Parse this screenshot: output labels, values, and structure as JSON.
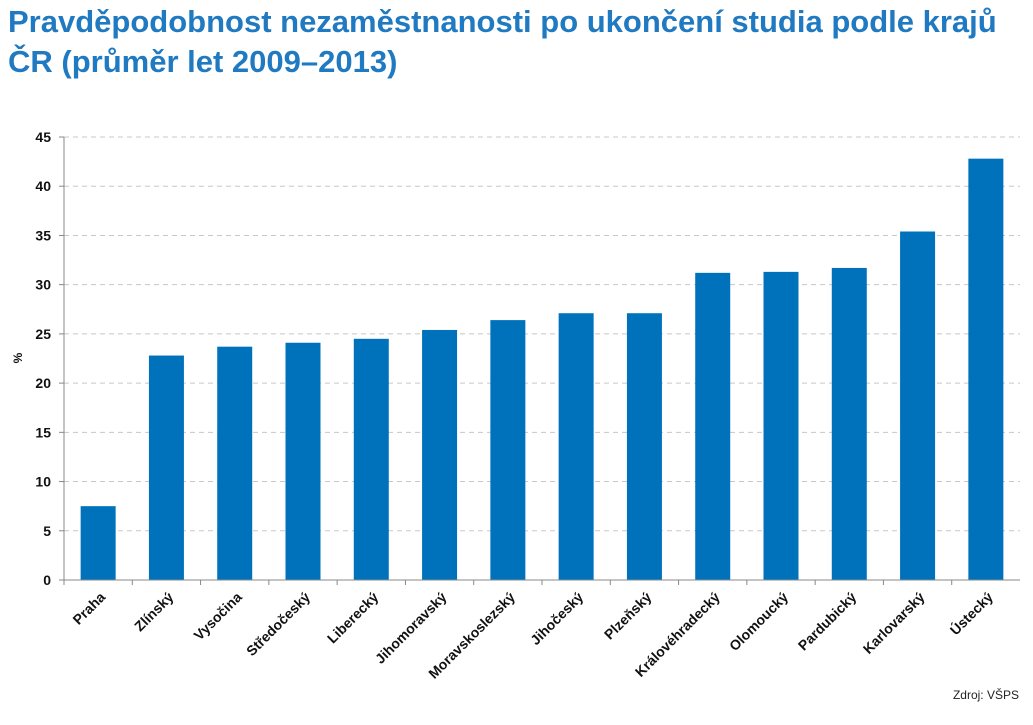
{
  "title": "Pravděpodobnost nezaměstnanosti po ukončení studia podle krajů ČR (průměr let 2009–2013)",
  "source": "Zdroj: VŠPS",
  "chart_data": {
    "type": "bar",
    "categories": [
      "Praha",
      "Zlínský",
      "Vysočina",
      "Středočeský",
      "Liberecký",
      "Jihomoravský",
      "Moravskoslezský",
      "Jihočeský",
      "Plzeňský",
      "Královéhradecký",
      "Olomoucký",
      "Pardubický",
      "Karlovarský",
      "Ústecký"
    ],
    "values": [
      7.5,
      22.8,
      23.7,
      24.1,
      24.5,
      25.4,
      26.4,
      27.1,
      27.1,
      31.2,
      31.3,
      31.7,
      35.4,
      42.8
    ],
    "ylabel": "%",
    "xlabel": "",
    "ylim": [
      0,
      45
    ],
    "yticks": [
      "0",
      "5",
      "10",
      "15",
      "20",
      "25",
      "30",
      "35",
      "40",
      "45"
    ],
    "bar_color": "#0072bc",
    "grid": true
  }
}
